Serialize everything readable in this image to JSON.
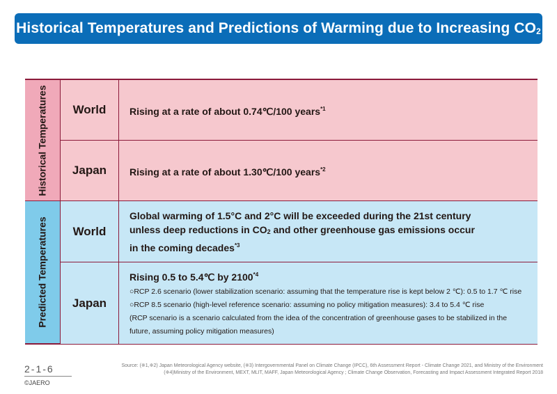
{
  "title": {
    "text": "Historical Temperatures and Predictions of Warming due to Increasing CO",
    "sub": "2"
  },
  "groups": {
    "historical": {
      "label": "Historical Temperatures",
      "rows": [
        {
          "region": "World",
          "text": "Rising at a rate of about 0.74℃/100 years",
          "note": "*1"
        },
        {
          "region": "Japan",
          "text": "Rising at a rate of about 1.30℃/100 years",
          "note": "*2"
        }
      ]
    },
    "predicted": {
      "label": "Predicted Temperatures",
      "world": {
        "region": "World",
        "line1": "Global warming of 1.5°C and 2°C will be exceeded during the 21st century",
        "line2a": "unless deep reductions in CO",
        "line2sub": "2",
        "line2b": " and other greenhouse gas emissions occur",
        "line3": "in the coming decades",
        "note": "*3"
      },
      "japan": {
        "region": "Japan",
        "headline": "Rising 0.5 to 5.4℃ by 2100",
        "note": "*4",
        "details": [
          "○RCP 2.6 scenario (lower stabilization scenario: assuming that the temperature rise is kept below 2 ℃): 0.5 to 1.7 ℃ rise",
          "○RCP 8.5 scenario (high-level reference scenario: assuming no policy mitigation measures): 3.4 to 5.4 ℃ rise",
          "(RCP scenario is a scenario calculated from the idea of the concentration of greenhouse gases to be stabilized in the",
          "future, assuming policy mitigation measures)"
        ]
      }
    }
  },
  "footer": {
    "page_number": "2-1-6",
    "copyright": "©JAERO",
    "source_line1": "Source: (※1,※2) Japan Meteorological Agency website, (※3) Intergovernmental Panel on Climate Change (IPCC), 6th Assessment Report - Climate Change 2021, and Ministry of the Environment",
    "source_line2": "(※4)Ministry of the Environment, MEXT, MLIT, MAFF, Japan Meteorological Agency ; Climate Change Observation, Forecasting and Impact Assessment Integrated Report 2018"
  },
  "colors": {
    "title_bar": "#0b6db8",
    "historical_label_bg": "#f0a9b9",
    "historical_row_bg": "#f6c8ce",
    "predicted_label_bg": "#7fcbea",
    "predicted_row_bg": "#c7e7f6",
    "border": "#8b1a3a"
  }
}
